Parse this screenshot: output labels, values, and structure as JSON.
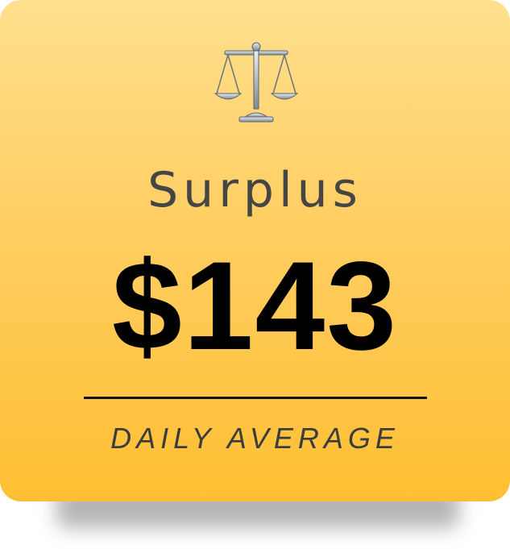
{
  "card": {
    "icon": "balance-scale-icon",
    "title": "Surplus",
    "value": "$143",
    "caption": "DAILY AVERAGE",
    "gradient_top": "#ffe08e",
    "gradient_bottom": "#ffbf33"
  }
}
